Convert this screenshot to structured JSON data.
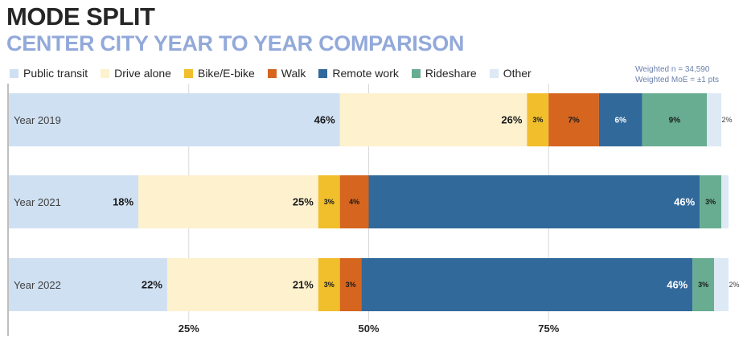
{
  "header": {
    "title": "MODE SPLIT",
    "subtitle": "CENTER CITY YEAR TO YEAR COMPARISON"
  },
  "note": {
    "line1": "Weighted n = 34,590",
    "line2": "Weighted MoE = ±1 pts"
  },
  "chart_data": {
    "type": "bar",
    "orientation": "horizontal",
    "stacked": true,
    "categories": [
      "Year 2019",
      "Year 2021",
      "Year 2022"
    ],
    "series": [
      {
        "name": "Public transit",
        "color": "#cfe0f2",
        "values": [
          46,
          18,
          22
        ]
      },
      {
        "name": "Drive alone",
        "color": "#fdf1ce",
        "values": [
          26,
          25,
          21
        ]
      },
      {
        "name": "Bike/E-bike",
        "color": "#f1be2c",
        "values": [
          3,
          3,
          3
        ]
      },
      {
        "name": "Walk",
        "color": "#d5651f",
        "values": [
          7,
          4,
          3
        ]
      },
      {
        "name": "Remote work",
        "color": "#31699b",
        "values": [
          6,
          46,
          46
        ]
      },
      {
        "name": "Rideshare",
        "color": "#68ad91",
        "values": [
          9,
          3,
          3
        ]
      },
      {
        "name": "Other",
        "color": "#dde9f5",
        "values": [
          2,
          1,
          2
        ]
      }
    ],
    "data_labels": [
      [
        "46%",
        "26%",
        "3%",
        "7%",
        "6%",
        "9%",
        "2%"
      ],
      [
        "18%",
        "25%",
        "3%",
        "4%",
        "46%",
        "3%",
        ""
      ],
      [
        "22%",
        "21%",
        "3%",
        "3%",
        "46%",
        "3%",
        "2%"
      ]
    ],
    "x_ticks": [
      25,
      50,
      75
    ],
    "x_tick_labels": [
      "25%",
      "50%",
      "75%"
    ],
    "xlim": [
      0,
      100
    ],
    "legend_position": "top-left",
    "grid": "vertical gridlines at 25%, 50%, 75%"
  }
}
